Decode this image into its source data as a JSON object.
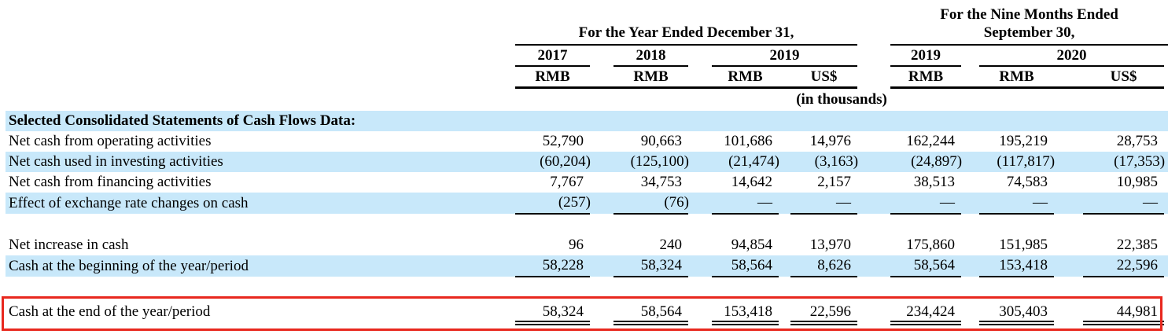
{
  "colors": {
    "row_shade": "#c8e8fa",
    "box_border": "#e8281e",
    "rule": "#000000",
    "text": "#000000"
  },
  "table": {
    "group_headers": [
      {
        "line1": "For the Year Ended December 31,"
      },
      {
        "line1": "For the Nine Months Ended",
        "line2": "September 30,"
      }
    ],
    "year_headers": [
      "2017",
      "2018",
      "2019",
      "2019",
      "2020"
    ],
    "currency_headers": [
      "RMB",
      "RMB",
      "RMB",
      "US$",
      "RMB",
      "RMB",
      "US$"
    ],
    "units_note": "(in thousands)",
    "rows": [
      {
        "type": "section",
        "label": "Selected Consolidated Statements of Cash Flows Data:",
        "shaded": true
      },
      {
        "type": "data",
        "label": "Net cash from operating activities",
        "shaded": false,
        "values": [
          "52,790",
          "90,663",
          "101,686",
          "14,976",
          "162,244",
          "195,219",
          "28,753"
        ]
      },
      {
        "type": "data",
        "label": "Net cash used in investing activities",
        "shaded": true,
        "values": [
          "(60,204)",
          "(125,100)",
          "(21,474)",
          "(3,163)",
          "(24,897)",
          "(117,817)",
          "(17,353)"
        ]
      },
      {
        "type": "data",
        "label": "Net cash from financing activities",
        "shaded": false,
        "values": [
          "7,767",
          "34,753",
          "14,642",
          "2,157",
          "38,513",
          "74,583",
          "10,985"
        ]
      },
      {
        "type": "data",
        "label": "Effect of exchange rate changes on cash",
        "shaded": true,
        "underline": "single",
        "values": [
          "(257)",
          "(76)",
          "—",
          "—",
          "—",
          "—",
          "—"
        ]
      },
      {
        "type": "spacer"
      },
      {
        "type": "data",
        "label": "Net increase in cash",
        "shaded": false,
        "values": [
          "96",
          "240",
          "94,854",
          "13,970",
          "175,860",
          "151,985",
          "22,385"
        ]
      },
      {
        "type": "data",
        "label": "Cash at the beginning of the year/period",
        "shaded": true,
        "underline": "single",
        "values": [
          "58,228",
          "58,324",
          "58,564",
          "8,626",
          "58,564",
          "153,418",
          "22,596"
        ]
      },
      {
        "type": "spacer"
      },
      {
        "type": "data",
        "label": "Cash at the end of the year/period",
        "shaded": false,
        "underline": "double",
        "boxed": true,
        "values": [
          "58,324",
          "58,564",
          "153,418",
          "22,596",
          "234,424",
          "305,403",
          "44,981"
        ]
      }
    ]
  }
}
